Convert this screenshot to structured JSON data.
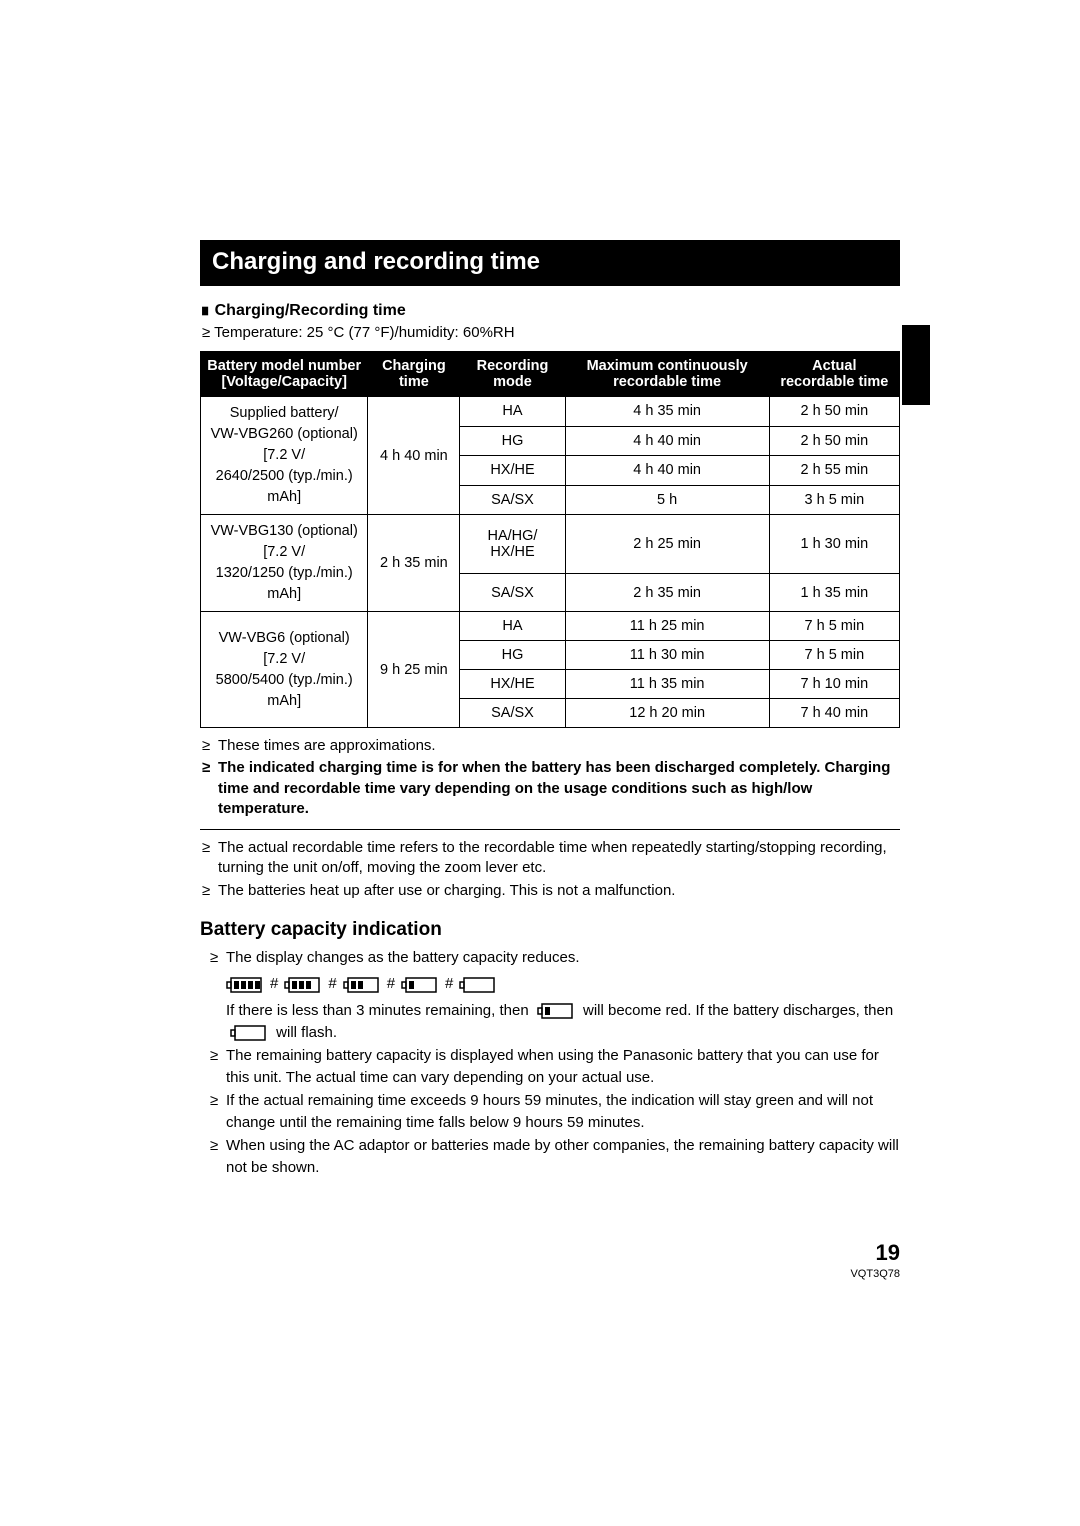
{
  "section_title": "Charging and recording time",
  "sub_heading": "Charging/Recording time",
  "condition_line": "Temperature: 25 °C (77 °F)/humidity: 60%RH",
  "table": {
    "headers": {
      "model": "Battery model number\n[Voltage/Capacity]",
      "charging": "Charging time",
      "mode": "Recording mode",
      "max": "Maximum continuously recordable time",
      "actual": "Actual recordable time"
    },
    "groups": [
      {
        "model_html": "Supplied battery/<br>VW-VBG260 (optional)<br>[7.2 V/<br>2640/2500 (typ./min.) mAh]",
        "charging": "4 h 40 min",
        "rows": [
          {
            "mode": "HA",
            "max": "4 h 35 min",
            "actual": "2 h 50 min"
          },
          {
            "mode": "HG",
            "max": "4 h 40 min",
            "actual": "2 h 50 min"
          },
          {
            "mode": "HX/HE",
            "max": "4 h 40 min",
            "actual": "2 h 55 min"
          },
          {
            "mode": "SA/SX",
            "max": "5 h",
            "actual": "3 h 5 min"
          }
        ]
      },
      {
        "model_html": "VW-VBG130 (optional)<br>[7.2 V/<br>1320/1250 (typ./min.) mAh]",
        "charging": "2 h 35 min",
        "rows": [
          {
            "mode": "HA/HG/\nHX/HE",
            "max": "2 h 25 min",
            "actual": "1 h 30 min"
          },
          {
            "mode": "SA/SX",
            "max": "2 h 35 min",
            "actual": "1 h 35 min"
          }
        ]
      },
      {
        "model_html": "VW-VBG6 (optional)<br>[7.2 V/<br>5800/5400 (typ./min.) mAh]",
        "charging": "9 h 25 min",
        "rows": [
          {
            "mode": "HA",
            "max": "11 h 25 min",
            "actual": "7 h 5 min"
          },
          {
            "mode": "HG",
            "max": "11 h 30 min",
            "actual": "7 h 5 min"
          },
          {
            "mode": "HX/HE",
            "max": "11 h 35 min",
            "actual": "7 h 10 min"
          },
          {
            "mode": "SA/SX",
            "max": "12 h 20 min",
            "actual": "7 h 40 min"
          }
        ]
      }
    ]
  },
  "notes_top": [
    {
      "text": "These times are approximations.",
      "bold": false
    },
    {
      "text": "The indicated charging time is for when the battery has been discharged completely. Charging time and recordable time vary depending on the usage conditions such as high/low temperature.",
      "bold": true
    }
  ],
  "notes_mid": [
    "The actual recordable time refers to the recordable time when repeatedly starting/stopping recording, turning the unit on/off, moving the zoom lever etc.",
    "The batteries heat up after use or charging. This is not a malfunction."
  ],
  "subsection_heading": "Battery capacity indication",
  "capacity": {
    "intro": "The display changes as the battery capacity reduces.",
    "line_red_a": "If there is less than 3 minutes remaining, then ",
    "line_red_b": " will become red. If the battery discharges, then ",
    "line_red_c": " will flash.",
    "bullets": [
      "The remaining battery capacity is displayed when using the Panasonic battery that you can use for this unit. The actual time can vary depending on your actual use.",
      "If the actual remaining time exceeds 9 hours 59 minutes, the indication will stay green and will not change until the remaining time falls below 9 hours 59 minutes.",
      "When using the AC adaptor or batteries made by other companies, the remaining battery capacity will not be shown."
    ]
  },
  "page_number": "19",
  "doc_code": "VQT3Q78",
  "colors": {
    "black": "#000000",
    "white": "#ffffff"
  }
}
